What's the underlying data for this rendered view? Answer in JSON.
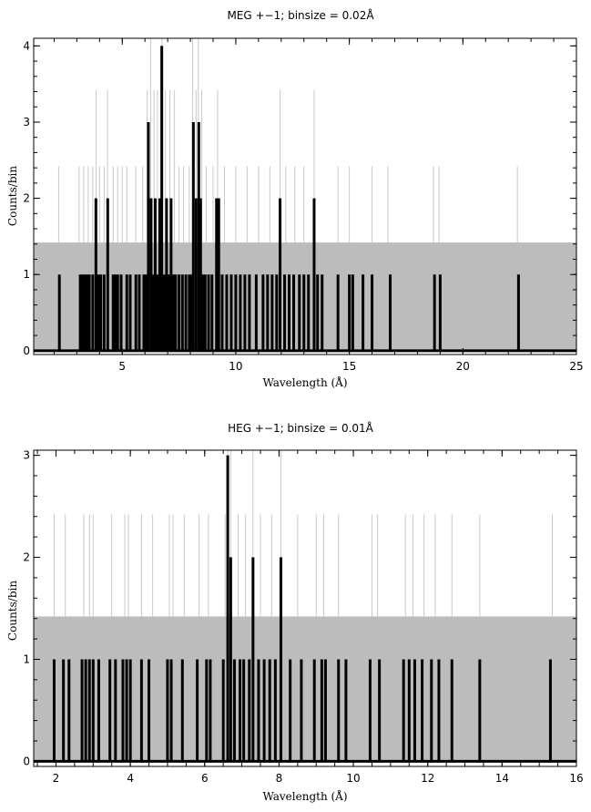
{
  "chart_data": [
    {
      "type": "bar",
      "title": "MEG +−1; binsize = 0.02Å",
      "xlabel": "Wavelength (Å)",
      "ylabel": "Counts/bin",
      "xlim": [
        1.1,
        25.0
      ],
      "ylim": [
        -0.05,
        4.1
      ],
      "xticks": [
        5,
        10,
        15,
        20,
        25
      ],
      "yticks": [
        0,
        1,
        2,
        3,
        4
      ],
      "grid": false,
      "series": [
        {
          "role": "uncertainty-band",
          "color": "#bcbcbc",
          "band_y": [
            0,
            1.42
          ],
          "x_range": [
            1.1,
            25.0
          ]
        },
        {
          "role": "error-spikes",
          "color": "#c8c8c8",
          "points": [
            {
              "x": 2.2,
              "y": 2.42
            },
            {
              "x": 3.1,
              "y": 2.42
            },
            {
              "x": 3.3,
              "y": 2.42
            },
            {
              "x": 3.5,
              "y": 2.42
            },
            {
              "x": 3.7,
              "y": 2.42
            },
            {
              "x": 3.85,
              "y": 3.42
            },
            {
              "x": 4.0,
              "y": 2.42
            },
            {
              "x": 4.2,
              "y": 2.42
            },
            {
              "x": 4.35,
              "y": 3.42
            },
            {
              "x": 4.6,
              "y": 2.42
            },
            {
              "x": 4.8,
              "y": 2.42
            },
            {
              "x": 5.0,
              "y": 2.42
            },
            {
              "x": 5.2,
              "y": 2.42
            },
            {
              "x": 5.6,
              "y": 2.42
            },
            {
              "x": 5.9,
              "y": 2.42
            },
            {
              "x": 6.1,
              "y": 3.42
            },
            {
              "x": 6.25,
              "y": 4.1
            },
            {
              "x": 6.4,
              "y": 3.42
            },
            {
              "x": 6.55,
              "y": 3.42
            },
            {
              "x": 6.75,
              "y": 4.1
            },
            {
              "x": 6.9,
              "y": 3.42
            },
            {
              "x": 7.1,
              "y": 3.42
            },
            {
              "x": 7.3,
              "y": 3.42
            },
            {
              "x": 7.5,
              "y": 2.42
            },
            {
              "x": 7.7,
              "y": 2.42
            },
            {
              "x": 7.95,
              "y": 2.42
            },
            {
              "x": 8.1,
              "y": 4.1
            },
            {
              "x": 8.25,
              "y": 3.42
            },
            {
              "x": 8.35,
              "y": 4.1
            },
            {
              "x": 8.5,
              "y": 3.42
            },
            {
              "x": 8.7,
              "y": 2.42
            },
            {
              "x": 9.0,
              "y": 2.42
            },
            {
              "x": 9.2,
              "y": 3.42
            },
            {
              "x": 9.5,
              "y": 2.42
            },
            {
              "x": 10.0,
              "y": 2.42
            },
            {
              "x": 10.5,
              "y": 2.42
            },
            {
              "x": 11.0,
              "y": 2.42
            },
            {
              "x": 11.5,
              "y": 2.42
            },
            {
              "x": 11.95,
              "y": 3.42
            },
            {
              "x": 12.2,
              "y": 2.42
            },
            {
              "x": 12.6,
              "y": 2.42
            },
            {
              "x": 13.0,
              "y": 2.42
            },
            {
              "x": 13.45,
              "y": 3.42
            },
            {
              "x": 14.5,
              "y": 2.42
            },
            {
              "x": 15.0,
              "y": 2.42
            },
            {
              "x": 16.0,
              "y": 2.42
            },
            {
              "x": 16.7,
              "y": 2.42
            },
            {
              "x": 18.7,
              "y": 2.42
            },
            {
              "x": 18.95,
              "y": 2.42
            },
            {
              "x": 22.4,
              "y": 2.42
            }
          ]
        },
        {
          "role": "counts",
          "color": "#000000",
          "points": [
            {
              "x": 2.23,
              "y": 1
            },
            {
              "x": 3.15,
              "y": 1
            },
            {
              "x": 3.25,
              "y": 1
            },
            {
              "x": 3.35,
              "y": 1
            },
            {
              "x": 3.45,
              "y": 1
            },
            {
              "x": 3.55,
              "y": 1
            },
            {
              "x": 3.7,
              "y": 1
            },
            {
              "x": 3.84,
              "y": 2
            },
            {
              "x": 3.95,
              "y": 1
            },
            {
              "x": 4.05,
              "y": 1
            },
            {
              "x": 4.2,
              "y": 1
            },
            {
              "x": 4.36,
              "y": 2
            },
            {
              "x": 4.6,
              "y": 1
            },
            {
              "x": 4.7,
              "y": 1
            },
            {
              "x": 4.8,
              "y": 1
            },
            {
              "x": 4.95,
              "y": 1
            },
            {
              "x": 5.2,
              "y": 1
            },
            {
              "x": 5.35,
              "y": 1
            },
            {
              "x": 5.6,
              "y": 1
            },
            {
              "x": 5.75,
              "y": 1
            },
            {
              "x": 5.95,
              "y": 1
            },
            {
              "x": 6.05,
              "y": 1
            },
            {
              "x": 6.15,
              "y": 3
            },
            {
              "x": 6.27,
              "y": 2
            },
            {
              "x": 6.35,
              "y": 1
            },
            {
              "x": 6.45,
              "y": 2
            },
            {
              "x": 6.55,
              "y": 1
            },
            {
              "x": 6.65,
              "y": 2
            },
            {
              "x": 6.74,
              "y": 4
            },
            {
              "x": 6.85,
              "y": 1
            },
            {
              "x": 6.95,
              "y": 2
            },
            {
              "x": 7.05,
              "y": 1
            },
            {
              "x": 7.15,
              "y": 2
            },
            {
              "x": 7.25,
              "y": 1
            },
            {
              "x": 7.35,
              "y": 1
            },
            {
              "x": 7.5,
              "y": 1
            },
            {
              "x": 7.65,
              "y": 1
            },
            {
              "x": 7.8,
              "y": 1
            },
            {
              "x": 7.95,
              "y": 1
            },
            {
              "x": 8.05,
              "y": 1
            },
            {
              "x": 8.13,
              "y": 3
            },
            {
              "x": 8.25,
              "y": 2
            },
            {
              "x": 8.37,
              "y": 3
            },
            {
              "x": 8.45,
              "y": 2
            },
            {
              "x": 8.55,
              "y": 1
            },
            {
              "x": 8.65,
              "y": 1
            },
            {
              "x": 8.8,
              "y": 1
            },
            {
              "x": 8.95,
              "y": 1
            },
            {
              "x": 9.15,
              "y": 2
            },
            {
              "x": 9.25,
              "y": 2
            },
            {
              "x": 9.4,
              "y": 1
            },
            {
              "x": 9.6,
              "y": 1
            },
            {
              "x": 9.8,
              "y": 1
            },
            {
              "x": 10.0,
              "y": 1
            },
            {
              "x": 10.2,
              "y": 1
            },
            {
              "x": 10.4,
              "y": 1
            },
            {
              "x": 10.6,
              "y": 1
            },
            {
              "x": 10.9,
              "y": 1
            },
            {
              "x": 11.2,
              "y": 1
            },
            {
              "x": 11.4,
              "y": 1
            },
            {
              "x": 11.6,
              "y": 1
            },
            {
              "x": 11.8,
              "y": 1
            },
            {
              "x": 11.95,
              "y": 2
            },
            {
              "x": 12.15,
              "y": 1
            },
            {
              "x": 12.35,
              "y": 1
            },
            {
              "x": 12.55,
              "y": 1
            },
            {
              "x": 12.8,
              "y": 1
            },
            {
              "x": 13.0,
              "y": 1
            },
            {
              "x": 13.2,
              "y": 1
            },
            {
              "x": 13.45,
              "y": 2
            },
            {
              "x": 13.6,
              "y": 1
            },
            {
              "x": 13.8,
              "y": 1
            },
            {
              "x": 14.5,
              "y": 1
            },
            {
              "x": 15.0,
              "y": 1
            },
            {
              "x": 15.15,
              "y": 1
            },
            {
              "x": 15.6,
              "y": 1
            },
            {
              "x": 16.0,
              "y": 1
            },
            {
              "x": 16.8,
              "y": 1
            },
            {
              "x": 18.75,
              "y": 1
            },
            {
              "x": 19.0,
              "y": 1
            },
            {
              "x": 22.45,
              "y": 1
            }
          ]
        }
      ]
    },
    {
      "type": "bar",
      "title": "HEG +−1; binsize = 0.01Å",
      "xlabel": "Wavelength (Å)",
      "ylabel": "Counts/bin",
      "xlim": [
        1.4,
        16.0
      ],
      "ylim": [
        -0.05,
        3.05
      ],
      "xticks": [
        2,
        4,
        6,
        8,
        10,
        12,
        14,
        16
      ],
      "yticks": [
        0,
        1,
        2,
        3
      ],
      "grid": false,
      "series": [
        {
          "role": "uncertainty-band",
          "color": "#bcbcbc",
          "band_y": [
            0,
            1.42
          ],
          "x_range": [
            1.4,
            16.0
          ]
        },
        {
          "role": "error-spikes",
          "color": "#c8c8c8",
          "points": [
            {
              "x": 1.95,
              "y": 2.42
            },
            {
              "x": 2.25,
              "y": 2.42
            },
            {
              "x": 2.75,
              "y": 2.42
            },
            {
              "x": 2.9,
              "y": 2.42
            },
            {
              "x": 3.0,
              "y": 2.42
            },
            {
              "x": 3.5,
              "y": 2.42
            },
            {
              "x": 3.85,
              "y": 2.42
            },
            {
              "x": 3.95,
              "y": 2.42
            },
            {
              "x": 4.3,
              "y": 2.42
            },
            {
              "x": 4.6,
              "y": 2.42
            },
            {
              "x": 5.05,
              "y": 2.42
            },
            {
              "x": 5.15,
              "y": 2.42
            },
            {
              "x": 5.45,
              "y": 2.42
            },
            {
              "x": 5.85,
              "y": 2.42
            },
            {
              "x": 6.1,
              "y": 2.42
            },
            {
              "x": 6.55,
              "y": 2.42
            },
            {
              "x": 6.62,
              "y": 3.42
            },
            {
              "x": 6.7,
              "y": 3.05
            },
            {
              "x": 6.9,
              "y": 2.42
            },
            {
              "x": 7.1,
              "y": 2.42
            },
            {
              "x": 7.3,
              "y": 3.42
            },
            {
              "x": 7.5,
              "y": 2.42
            },
            {
              "x": 7.8,
              "y": 2.42
            },
            {
              "x": 8.05,
              "y": 3.42
            },
            {
              "x": 8.5,
              "y": 2.42
            },
            {
              "x": 9.0,
              "y": 2.42
            },
            {
              "x": 9.2,
              "y": 2.42
            },
            {
              "x": 9.6,
              "y": 2.42
            },
            {
              "x": 10.5,
              "y": 2.42
            },
            {
              "x": 10.65,
              "y": 2.42
            },
            {
              "x": 11.4,
              "y": 2.42
            },
            {
              "x": 11.6,
              "y": 2.42
            },
            {
              "x": 11.9,
              "y": 2.42
            },
            {
              "x": 12.2,
              "y": 2.42
            },
            {
              "x": 12.65,
              "y": 2.42
            },
            {
              "x": 13.4,
              "y": 2.42
            },
            {
              "x": 15.35,
              "y": 2.42
            }
          ]
        },
        {
          "role": "counts",
          "color": "#000000",
          "points": [
            {
              "x": 1.95,
              "y": 1
            },
            {
              "x": 2.2,
              "y": 1
            },
            {
              "x": 2.35,
              "y": 1
            },
            {
              "x": 2.7,
              "y": 1
            },
            {
              "x": 2.8,
              "y": 1
            },
            {
              "x": 2.9,
              "y": 1
            },
            {
              "x": 3.0,
              "y": 1
            },
            {
              "x": 3.15,
              "y": 1
            },
            {
              "x": 3.45,
              "y": 1
            },
            {
              "x": 3.6,
              "y": 1
            },
            {
              "x": 3.8,
              "y": 1
            },
            {
              "x": 3.9,
              "y": 1
            },
            {
              "x": 4.0,
              "y": 1
            },
            {
              "x": 4.3,
              "y": 1
            },
            {
              "x": 4.5,
              "y": 1
            },
            {
              "x": 5.0,
              "y": 1
            },
            {
              "x": 5.1,
              "y": 1
            },
            {
              "x": 5.4,
              "y": 1
            },
            {
              "x": 5.8,
              "y": 1
            },
            {
              "x": 6.05,
              "y": 1
            },
            {
              "x": 6.15,
              "y": 1
            },
            {
              "x": 6.5,
              "y": 1
            },
            {
              "x": 6.62,
              "y": 3
            },
            {
              "x": 6.7,
              "y": 2
            },
            {
              "x": 6.8,
              "y": 1
            },
            {
              "x": 6.95,
              "y": 1
            },
            {
              "x": 7.05,
              "y": 1
            },
            {
              "x": 7.2,
              "y": 1
            },
            {
              "x": 7.3,
              "y": 2
            },
            {
              "x": 7.45,
              "y": 1
            },
            {
              "x": 7.6,
              "y": 1
            },
            {
              "x": 7.75,
              "y": 1
            },
            {
              "x": 7.9,
              "y": 1
            },
            {
              "x": 8.05,
              "y": 2
            },
            {
              "x": 8.3,
              "y": 1
            },
            {
              "x": 8.6,
              "y": 1
            },
            {
              "x": 8.95,
              "y": 1
            },
            {
              "x": 9.15,
              "y": 1
            },
            {
              "x": 9.25,
              "y": 1
            },
            {
              "x": 9.6,
              "y": 1
            },
            {
              "x": 9.8,
              "y": 1
            },
            {
              "x": 10.45,
              "y": 1
            },
            {
              "x": 10.7,
              "y": 1
            },
            {
              "x": 11.35,
              "y": 1
            },
            {
              "x": 11.5,
              "y": 1
            },
            {
              "x": 11.65,
              "y": 1
            },
            {
              "x": 11.85,
              "y": 1
            },
            {
              "x": 12.1,
              "y": 1
            },
            {
              "x": 12.3,
              "y": 1
            },
            {
              "x": 12.65,
              "y": 1
            },
            {
              "x": 13.4,
              "y": 1
            },
            {
              "x": 15.3,
              "y": 1
            }
          ]
        }
      ]
    }
  ]
}
